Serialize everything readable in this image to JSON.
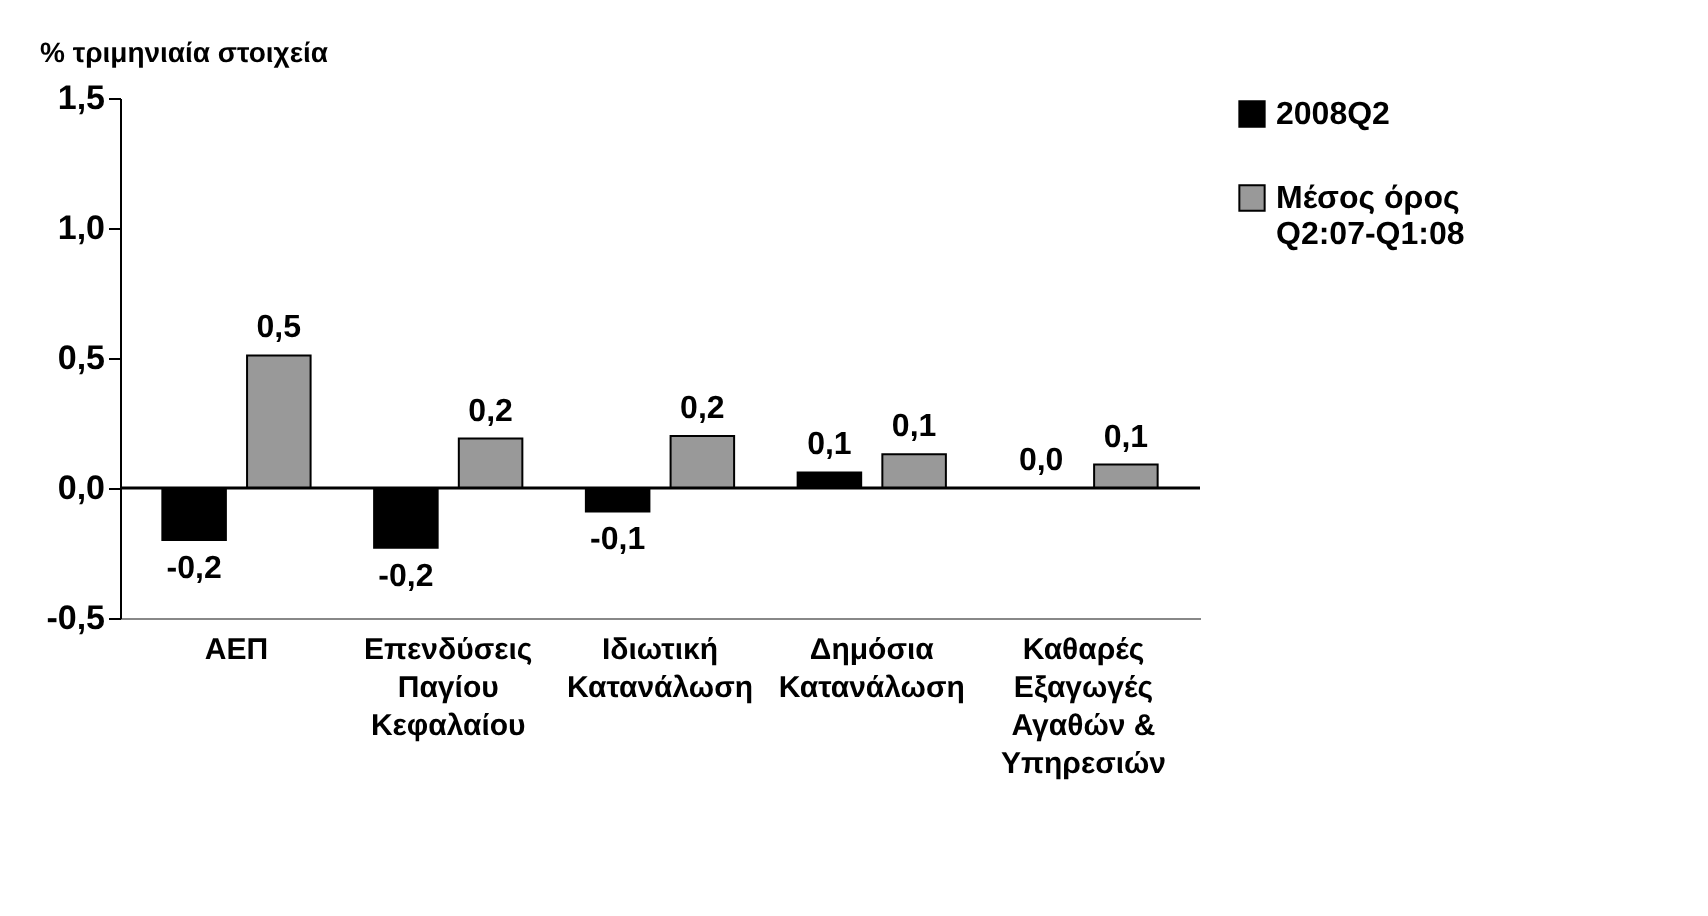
{
  "chart_data": {
    "type": "bar",
    "ylabel": "% τριμηνιαία στοιχεία",
    "categories": [
      "ΑΕΠ",
      "Επενδύσεις Παγίου Κεφαλαίου",
      "Ιδιωτική Κατανάλωση",
      "Δημόσια Κατανάλωση",
      "Καθαρές Εξαγωγές Αγαθών & Υπηρεσιών"
    ],
    "series": [
      {
        "name": "2008Q2",
        "color": "#000000",
        "values": [
          -0.2,
          -0.23,
          -0.09,
          0.06,
          0.0
        ],
        "value_labels": [
          "-0,2",
          "-0,2",
          "-0,1",
          "0,1",
          "0,0"
        ]
      },
      {
        "name": "Μέσος όρος Q2:07-Q1:08",
        "color": "#999999",
        "values": [
          0.51,
          0.19,
          0.2,
          0.13,
          0.09
        ],
        "value_labels": [
          "0,5",
          "0,2",
          "0,2",
          "0,1",
          "0,1"
        ]
      }
    ],
    "ylim": [
      -0.5,
      1.5
    ],
    "yticks": [
      {
        "value": -0.5,
        "label": "-0,5"
      },
      {
        "value": 0,
        "label": "0,0"
      },
      {
        "value": 0.5,
        "label": "0,5"
      },
      {
        "value": 1,
        "label": "1,0"
      },
      {
        "value": 1.5,
        "label": "1,5"
      }
    ],
    "ref_lines": [
      {
        "axis": "y",
        "value": 0,
        "color": "#000000"
      }
    ],
    "grid": false,
    "legend": "top right"
  }
}
